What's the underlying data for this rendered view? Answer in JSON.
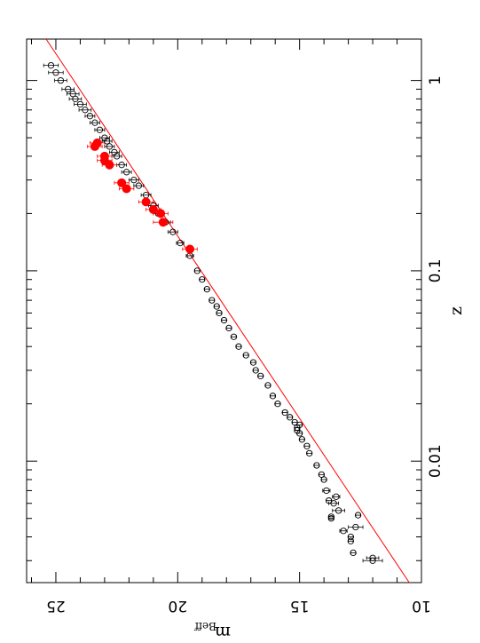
{
  "chart_data": {
    "type": "scatter",
    "title": "",
    "orientation": "rotated-90",
    "xlabel": "z",
    "ylabel": {
      "main": "m",
      "subscript": "Beff"
    },
    "x_scale": "log",
    "xlim": [
      0.0023,
      1.65
    ],
    "ylim": [
      10,
      26.2
    ],
    "x_tick_labels": [
      "0.01",
      "0.1",
      "1"
    ],
    "x_ticks": [
      0.01,
      0.1,
      1
    ],
    "y_tick_labels": [
      "10",
      "15",
      "20",
      "25"
    ],
    "y_ticks": [
      10,
      15,
      20,
      25
    ],
    "grid": false,
    "legend": "none",
    "colors": {
      "frame": "#000000",
      "open_points": "#000000",
      "highlight": "#ff0000",
      "fit_line": "#ff0000"
    },
    "fit_line": {
      "name": "",
      "points": [
        [
          0.0023,
          10.5
        ],
        [
          1.65,
          25.4
        ]
      ]
    },
    "series": [
      {
        "marker": "open-circle",
        "color": "#000000",
        "points": [
          [
            0.003,
            12.0,
            0.4
          ],
          [
            0.0031,
            12.0,
            0.25
          ],
          [
            0.0033,
            12.8,
            0.1
          ],
          [
            0.0038,
            12.9,
            0.1
          ],
          [
            0.004,
            12.9,
            0.1
          ],
          [
            0.0043,
            13.2,
            0.15
          ],
          [
            0.0045,
            12.7,
            0.3
          ],
          [
            0.005,
            13.7,
            0.1
          ],
          [
            0.0051,
            13.7,
            0.1
          ],
          [
            0.0052,
            12.6,
            0.1
          ],
          [
            0.0055,
            13.4,
            0.25
          ],
          [
            0.006,
            13.6,
            0.2
          ],
          [
            0.0062,
            13.8,
            0.1
          ],
          [
            0.0065,
            13.5,
            0.15
          ],
          [
            0.007,
            13.9,
            0.15
          ],
          [
            0.008,
            14.0,
            0.1
          ],
          [
            0.0085,
            14.1,
            0.1
          ],
          [
            0.0095,
            14.3,
            0.1
          ],
          [
            0.011,
            14.6,
            0.1
          ],
          [
            0.012,
            14.7,
            0.1
          ],
          [
            0.013,
            14.9,
            0.1
          ],
          [
            0.014,
            15.0,
            0.1
          ],
          [
            0.0145,
            15.1,
            0.1
          ],
          [
            0.015,
            15.1,
            0.1
          ],
          [
            0.0155,
            15.0,
            0.1
          ],
          [
            0.016,
            15.2,
            0.1
          ],
          [
            0.017,
            15.4,
            0.1
          ],
          [
            0.018,
            15.6,
            0.1
          ],
          [
            0.02,
            15.9,
            0.1
          ],
          [
            0.022,
            16.1,
            0.1
          ],
          [
            0.025,
            16.3,
            0.1
          ],
          [
            0.028,
            16.6,
            0.1
          ],
          [
            0.03,
            16.8,
            0.1
          ],
          [
            0.033,
            16.9,
            0.1
          ],
          [
            0.036,
            17.2,
            0.1
          ],
          [
            0.04,
            17.5,
            0.1
          ],
          [
            0.045,
            17.7,
            0.1
          ],
          [
            0.05,
            17.9,
            0.1
          ],
          [
            0.055,
            18.1,
            0.1
          ],
          [
            0.06,
            18.3,
            0.1
          ],
          [
            0.065,
            18.4,
            0.1
          ],
          [
            0.07,
            18.6,
            0.1
          ],
          [
            0.08,
            18.8,
            0.1
          ],
          [
            0.09,
            19.0,
            0.1
          ],
          [
            0.1,
            19.2,
            0.1
          ],
          [
            0.12,
            19.5,
            0.15
          ],
          [
            0.14,
            19.9,
            0.15
          ],
          [
            0.16,
            20.2,
            0.2
          ],
          [
            0.18,
            20.5,
            0.2
          ],
          [
            0.2,
            20.8,
            0.2
          ],
          [
            0.22,
            21.0,
            0.2
          ],
          [
            0.25,
            21.3,
            0.2
          ],
          [
            0.28,
            21.6,
            0.2
          ],
          [
            0.3,
            21.8,
            0.2
          ],
          [
            0.33,
            22.1,
            0.2
          ],
          [
            0.36,
            22.3,
            0.2
          ],
          [
            0.4,
            22.5,
            0.2
          ],
          [
            0.42,
            22.6,
            0.2
          ],
          [
            0.45,
            22.8,
            0.2
          ],
          [
            0.48,
            22.9,
            0.2
          ],
          [
            0.5,
            23.0,
            0.2
          ],
          [
            0.55,
            23.2,
            0.2
          ],
          [
            0.6,
            23.4,
            0.2
          ],
          [
            0.65,
            23.6,
            0.2
          ],
          [
            0.7,
            23.8,
            0.25
          ],
          [
            0.75,
            24.0,
            0.25
          ],
          [
            0.8,
            24.2,
            0.25
          ],
          [
            0.85,
            24.3,
            0.25
          ],
          [
            0.9,
            24.5,
            0.25
          ],
          [
            1.0,
            24.8,
            0.25
          ],
          [
            1.1,
            25.0,
            0.3
          ],
          [
            1.2,
            25.2,
            0.3
          ]
        ]
      },
      {
        "marker": "filled-circle",
        "color": "#ff0000",
        "points": [
          [
            0.13,
            19.5,
            0.3
          ],
          [
            0.18,
            20.6,
            0.4
          ],
          [
            0.2,
            20.7,
            0.3
          ],
          [
            0.21,
            21.0,
            0.3
          ],
          [
            0.23,
            21.3,
            0.3
          ],
          [
            0.27,
            22.1,
            0.3
          ],
          [
            0.29,
            22.3,
            0.3
          ],
          [
            0.36,
            22.8,
            0.3
          ],
          [
            0.38,
            23.0,
            0.3
          ],
          [
            0.4,
            23.0,
            0.3
          ],
          [
            0.45,
            23.4,
            0.3
          ],
          [
            0.47,
            23.3,
            0.3
          ]
        ]
      }
    ]
  }
}
